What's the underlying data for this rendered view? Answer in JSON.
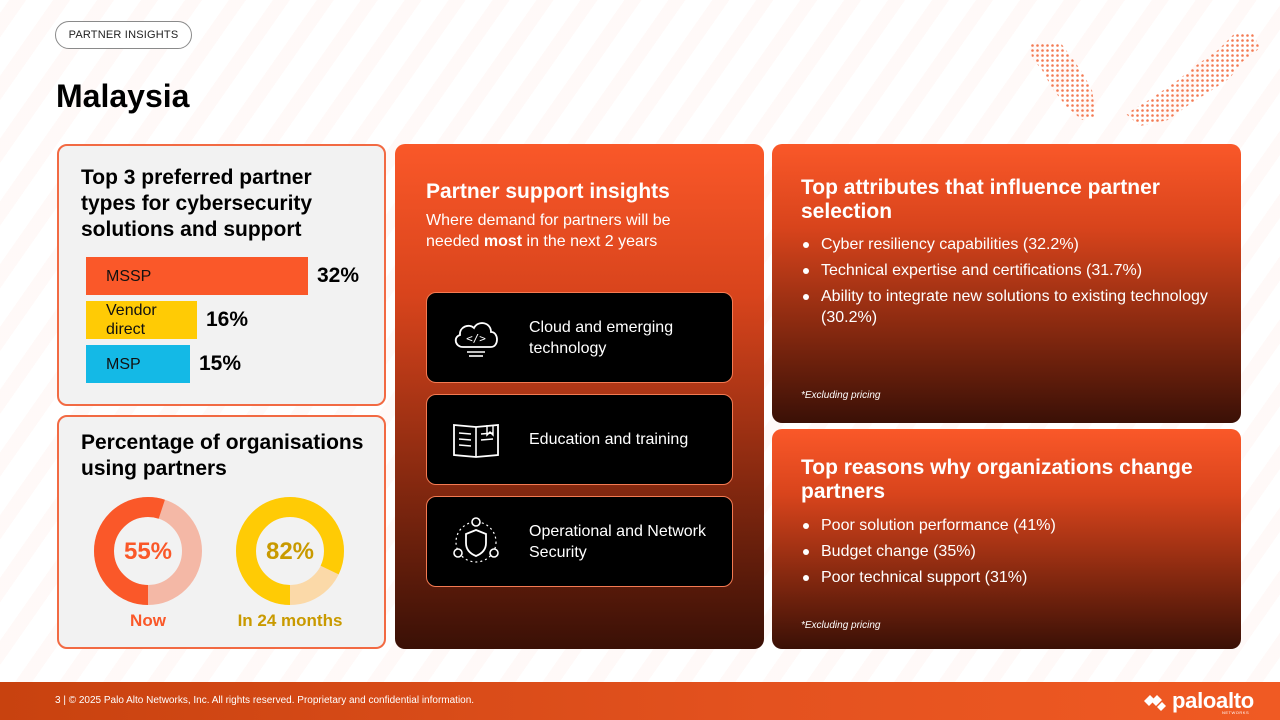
{
  "header": {
    "pill": "PARTNER INSIGHTS",
    "title": "Malaysia"
  },
  "partner_types": {
    "title": "Top 3 preferred partner types for cybersecurity solutions and support",
    "bars": [
      {
        "label": "MSSP",
        "value": "32%",
        "fraction": 0.32,
        "color": "#fa5829"
      },
      {
        "label": "Vendor direct",
        "value": "16%",
        "fraction": 0.16,
        "color": "#ffcb05"
      },
      {
        "label": "MSP",
        "value": "15%",
        "fraction": 0.15,
        "color": "#14b9e6"
      }
    ]
  },
  "usage": {
    "title": "Percentage of organisations using partners",
    "donuts": [
      {
        "value": "55%",
        "fraction": 0.55,
        "caption": "Now",
        "color": "#fa5829"
      },
      {
        "value": "82%",
        "fraction": 0.82,
        "caption": "In 24 months",
        "color": "#ffcb05"
      }
    ]
  },
  "support": {
    "title": "Partner support insights",
    "subtitle_pre": "Where demand for partners will be needed ",
    "subtitle_bold": "most",
    "subtitle_post": " in the next 2 years",
    "tiles": [
      {
        "label": "Cloud and emerging technology",
        "icon": "cloud-code-icon"
      },
      {
        "label": "Education and training",
        "icon": "book-icon"
      },
      {
        "label": "Operational and Network Security",
        "icon": "shield-network-icon"
      }
    ]
  },
  "attributes": {
    "title": "Top attributes that influence partner selection",
    "items": [
      "Cyber resiliency capabilities (32.2%)",
      "Technical expertise and certifications (31.7%)",
      "Ability to integrate new solutions to existing technology (30.2%)"
    ],
    "footnote": "*Excluding pricing"
  },
  "reasons": {
    "title": "Top reasons why organizations change partners",
    "items": [
      "Poor solution performance (41%)",
      "Budget change (35%)",
      "Poor technical support (31%)"
    ],
    "footnote": "*Excluding pricing"
  },
  "footer": {
    "text": "3 | © 2025 Palo Alto Networks, Inc. All rights reserved. Proprietary and confidential information.",
    "logo_text": "paloalto",
    "logo_sub": "NETWORKS"
  },
  "colors": {
    "accent": "#fa5829",
    "yellow": "#ffcb05",
    "blue": "#14b9e6"
  }
}
